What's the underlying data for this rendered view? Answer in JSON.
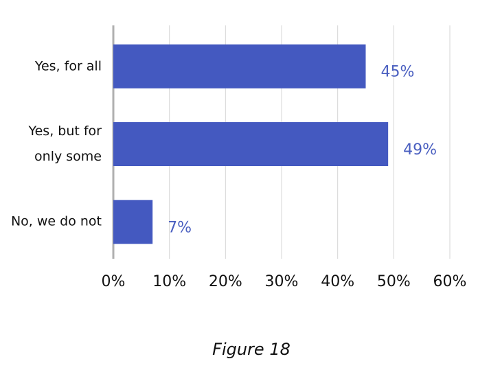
{
  "chart_data": {
    "type": "bar",
    "orientation": "horizontal",
    "categories": [
      "Yes, for all",
      "Yes, but for only some",
      "No, we do not"
    ],
    "values": [
      45,
      49,
      7
    ],
    "value_labels": [
      "45%",
      "49%",
      "7%"
    ],
    "color": "#4459c0",
    "xlim": [
      0,
      60
    ],
    "xticks": [
      {
        "value": 0,
        "label": "0%"
      },
      {
        "value": 10,
        "label": "10%"
      },
      {
        "value": 20,
        "label": "20%"
      },
      {
        "value": 30,
        "label": "30%"
      },
      {
        "value": 40,
        "label": "40%"
      },
      {
        "value": 50,
        "label": "50%"
      },
      {
        "value": 60,
        "label": "60%"
      }
    ],
    "grid": true,
    "caption": "Figure 18"
  }
}
